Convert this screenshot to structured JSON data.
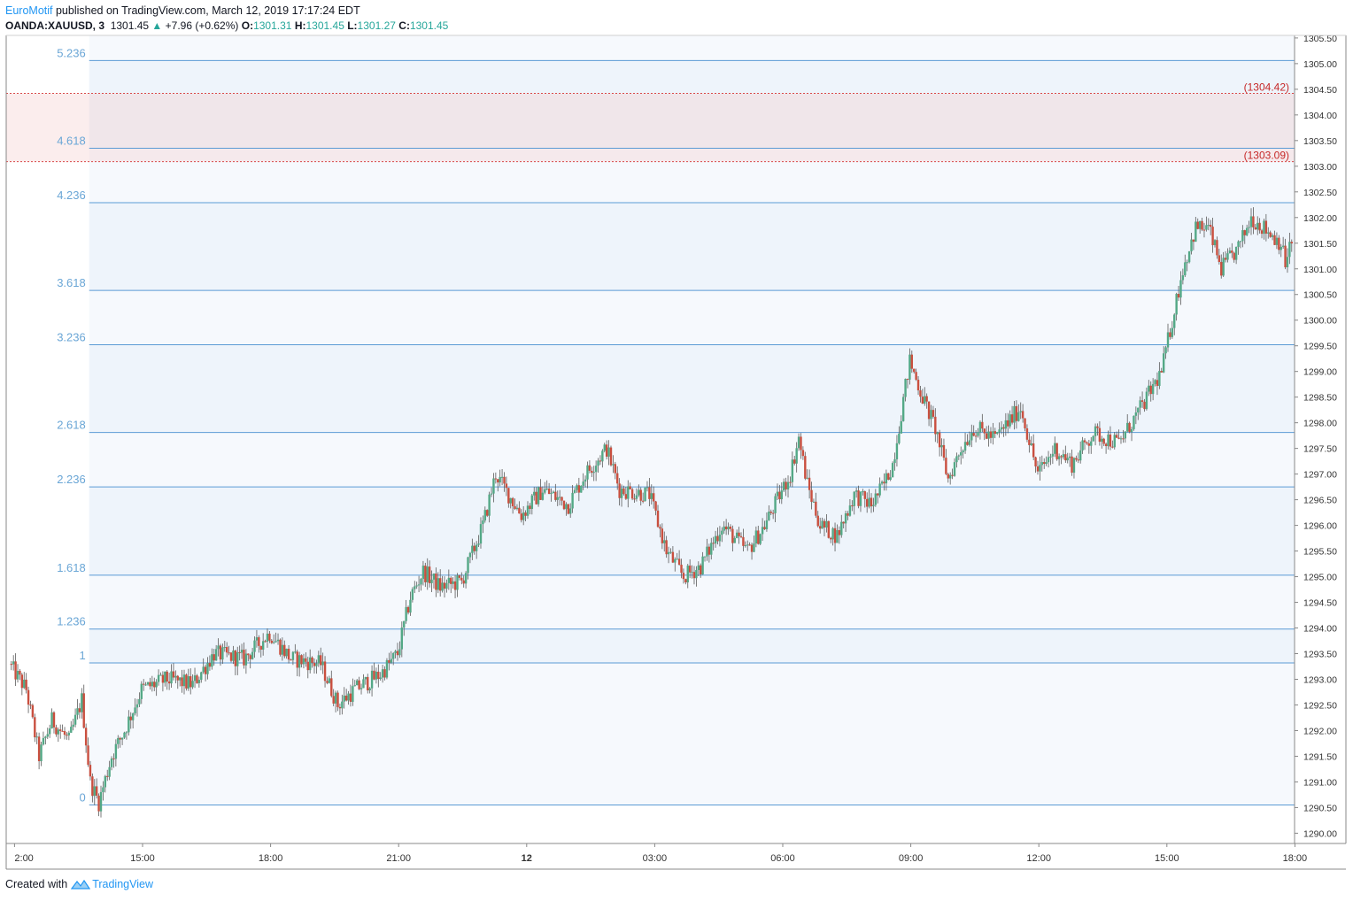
{
  "header": {
    "author": "EuroMotif",
    "published_text": " published on TradingView.com, March 12, 2019 17:17:24 EDT",
    "symbol": "OANDA:XAUUSD, 3",
    "last": "1301.45",
    "change": "+7.96 (+0.62%)",
    "o_label": "O:",
    "o_value": "1301.31",
    "h_label": "H:",
    "h_value": "1301.45",
    "l_label": "L:",
    "l_value": "1301.27",
    "c_label": "C:",
    "c_value": "1301.45"
  },
  "footer": {
    "created_text": "Created with",
    "brand": "TradingView"
  },
  "colors": {
    "up": "#53a886",
    "down": "#c94f3f",
    "fib_line": "#5b9bd5",
    "fib_text": "#6aa6d6",
    "zone_fill": "#f4cccc",
    "zone_line": "#d94a4a",
    "axis": "#888888"
  },
  "chart_data": {
    "type": "candlestick",
    "ylim": [
      1289.8,
      1305.55
    ],
    "y_ticks": [
      "1290.00",
      "1290.50",
      "1291.00",
      "1291.50",
      "1292.00",
      "1292.50",
      "1293.00",
      "1293.50",
      "1294.00",
      "1294.50",
      "1295.00",
      "1295.50",
      "1296.00",
      "1296.50",
      "1297.00",
      "1297.50",
      "1298.00",
      "1298.50",
      "1299.00",
      "1299.50",
      "1300.00",
      "1300.50",
      "1301.00",
      "1301.50",
      "1302.00",
      "1302.50",
      "1303.00",
      "1303.50",
      "1304.00",
      "1304.50",
      "1305.00",
      "1305.50"
    ],
    "x_ticks": [
      {
        "label": "2:00",
        "hour": 12
      },
      {
        "label": "15:00",
        "hour": 15
      },
      {
        "label": "18:00",
        "hour": 18
      },
      {
        "label": "21:00",
        "hour": 21
      },
      {
        "label": "12",
        "hour": 24
      },
      {
        "label": "03:00",
        "hour": 27
      },
      {
        "label": "06:00",
        "hour": 30
      },
      {
        "label": "09:00",
        "hour": 33
      },
      {
        "label": "12:00",
        "hour": 36
      },
      {
        "label": "15:00",
        "hour": 39
      },
      {
        "label": "18:00",
        "hour": 42
      }
    ],
    "fib_levels": [
      {
        "label": "0",
        "price": 1290.55
      },
      {
        "label": "1",
        "price": 1293.32
      },
      {
        "label": "1.236",
        "price": 1293.98
      },
      {
        "label": "1.618",
        "price": 1295.03
      },
      {
        "label": "2.236",
        "price": 1296.75
      },
      {
        "label": "2.618",
        "price": 1297.81
      },
      {
        "label": "3.236",
        "price": 1299.52
      },
      {
        "label": "3.618",
        "price": 1300.58
      },
      {
        "label": "4.236",
        "price": 1302.29
      },
      {
        "label": "4.618",
        "price": 1303.35
      },
      {
        "label": "5.236",
        "price": 1305.06
      }
    ],
    "zone": {
      "low": 1303.09,
      "high": 1304.42,
      "low_label": "(1303.09)",
      "high_label": "(1304.42)"
    },
    "price_path": [
      [
        11.9,
        1293.3
      ],
      [
        12.3,
        1292.8
      ],
      [
        12.6,
        1291.5
      ],
      [
        12.9,
        1292.2
      ],
      [
        13.3,
        1291.8
      ],
      [
        13.6,
        1292.6
      ],
      [
        13.8,
        1291.0
      ],
      [
        14.0,
        1290.6
      ],
      [
        14.3,
        1291.5
      ],
      [
        14.6,
        1292.0
      ],
      [
        15.0,
        1292.8
      ],
      [
        15.6,
        1293.0
      ],
      [
        16.2,
        1292.9
      ],
      [
        16.7,
        1293.5
      ],
      [
        17.4,
        1293.4
      ],
      [
        18.0,
        1293.9
      ],
      [
        18.5,
        1293.4
      ],
      [
        19.2,
        1293.3
      ],
      [
        19.6,
        1292.5
      ],
      [
        20.0,
        1292.8
      ],
      [
        20.6,
        1293.1
      ],
      [
        21.0,
        1293.5
      ],
      [
        21.3,
        1294.6
      ],
      [
        21.6,
        1295.1
      ],
      [
        22.0,
        1294.8
      ],
      [
        22.5,
        1294.9
      ],
      [
        23.0,
        1296.0
      ],
      [
        23.3,
        1297.0
      ],
      [
        23.9,
        1296.2
      ],
      [
        24.4,
        1296.7
      ],
      [
        25.0,
        1296.4
      ],
      [
        25.4,
        1297.0
      ],
      [
        25.9,
        1297.5
      ],
      [
        26.2,
        1296.7
      ],
      [
        26.9,
        1296.6
      ],
      [
        27.3,
        1295.5
      ],
      [
        27.7,
        1295.0
      ],
      [
        28.1,
        1295.2
      ],
      [
        28.6,
        1296.0
      ],
      [
        29.2,
        1295.5
      ],
      [
        29.6,
        1296.0
      ],
      [
        30.2,
        1297.0
      ],
      [
        30.4,
        1297.7
      ],
      [
        30.6,
        1296.8
      ],
      [
        30.9,
        1296.0
      ],
      [
        31.3,
        1295.8
      ],
      [
        31.7,
        1296.6
      ],
      [
        32.1,
        1296.4
      ],
      [
        32.4,
        1296.8
      ],
      [
        32.6,
        1297.2
      ],
      [
        32.8,
        1298.2
      ],
      [
        33.0,
        1299.2
      ],
      [
        33.3,
        1298.5
      ],
      [
        33.6,
        1297.9
      ],
      [
        33.9,
        1296.9
      ],
      [
        34.2,
        1297.5
      ],
      [
        34.5,
        1297.9
      ],
      [
        35.0,
        1297.7
      ],
      [
        35.6,
        1298.3
      ],
      [
        36.0,
        1297.0
      ],
      [
        36.4,
        1297.5
      ],
      [
        36.8,
        1297.2
      ],
      [
        37.3,
        1297.8
      ],
      [
        37.9,
        1297.6
      ],
      [
        38.5,
        1298.4
      ],
      [
        38.9,
        1299.0
      ],
      [
        39.1,
        1299.8
      ],
      [
        39.4,
        1301.0
      ],
      [
        39.7,
        1301.8
      ],
      [
        40.0,
        1301.8
      ],
      [
        40.3,
        1301.0
      ],
      [
        40.7,
        1301.4
      ],
      [
        41.0,
        1302.0
      ],
      [
        41.3,
        1301.8
      ],
      [
        41.7,
        1301.5
      ],
      [
        41.8,
        1301.1
      ],
      [
        41.9,
        1301.45
      ]
    ]
  }
}
